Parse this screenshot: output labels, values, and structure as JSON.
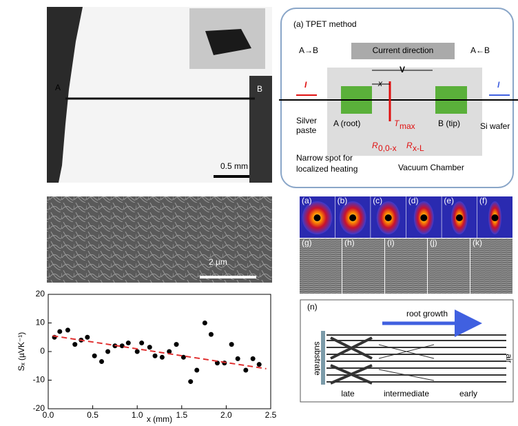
{
  "photo": {
    "label_a": "A",
    "label_b": "B",
    "scale": "0.5 mm"
  },
  "tpet": {
    "title": "(a) TPET method",
    "dir_ab": "A→B",
    "current": "Current direction",
    "dir_ba": "A←B",
    "i_left": "I",
    "i_right": "I",
    "v": "V",
    "x": "x",
    "silver": "Silver",
    "paste": "paste",
    "root": "A (root)",
    "tmax": {
      "symbol": "T",
      "sub": "max"
    },
    "tip": "B (tip)",
    "wafer": "Si wafer",
    "r1": {
      "symbol": "R",
      "sub": "0,0-x"
    },
    "r2": {
      "symbol": "R",
      "sub": "x-L"
    },
    "spot1": "Narrow spot for",
    "spot2": "localized heating",
    "chamber": "Vacuum Chamber"
  },
  "sem": {
    "scale": "2 µm"
  },
  "saxs": {
    "labels": [
      "(a)",
      "(b)",
      "(c)",
      "(d)",
      "(e)",
      "(f)"
    ]
  },
  "tem": {
    "labels": [
      "(g)",
      "(h)",
      "(i)",
      "(j)",
      "(k)"
    ]
  },
  "growth": {
    "label": "(n)",
    "arrow": "root growth",
    "substrate": "substrate",
    "air": "air",
    "late": "late",
    "intermediate": "intermediate",
    "early": "early"
  },
  "chart_data": {
    "type": "scatter",
    "y_label": "Sₓ (µVK⁻¹)",
    "x_label": "x (mm)",
    "xlim": [
      0,
      2.5
    ],
    "ylim": [
      -20,
      20
    ],
    "xticks": [
      {
        "value": 0,
        "label": "0.0"
      },
      {
        "value": 0.5,
        "label": "0.5"
      },
      {
        "value": 1,
        "label": "1.0"
      },
      {
        "value": 1.5,
        "label": "1.5"
      },
      {
        "value": 2,
        "label": "2.0"
      },
      {
        "value": 2.5,
        "label": "2.5"
      }
    ],
    "yticks": [
      -20,
      -10,
      0,
      10,
      20
    ],
    "series": [
      {
        "color": "#000000",
        "x": [
          0.07,
          0.13,
          0.22,
          0.3,
          0.37,
          0.44,
          0.52,
          0.6,
          0.67,
          0.75,
          0.83,
          0.9,
          1.0,
          1.05,
          1.14,
          1.2,
          1.28,
          1.36,
          1.44,
          1.52,
          1.6,
          1.67,
          1.76,
          1.83,
          1.9,
          1.98,
          2.06,
          2.13,
          2.22,
          2.3,
          2.37
        ],
        "values": [
          5,
          7,
          7.5,
          2.5,
          4,
          5,
          -1.5,
          -3.5,
          0,
          2,
          2,
          3,
          0,
          3,
          1.5,
          -1.5,
          -2,
          0,
          2.5,
          -2,
          -10.5,
          -6.5,
          10,
          6,
          -4,
          -4,
          2.5,
          -2.5,
          -6.5,
          -2.5,
          -4.5
        ]
      },
      {
        "color": "#e03030",
        "x": [
          0.05,
          2.45
        ],
        "values": [
          5.5,
          -6
        ]
      }
    ]
  }
}
